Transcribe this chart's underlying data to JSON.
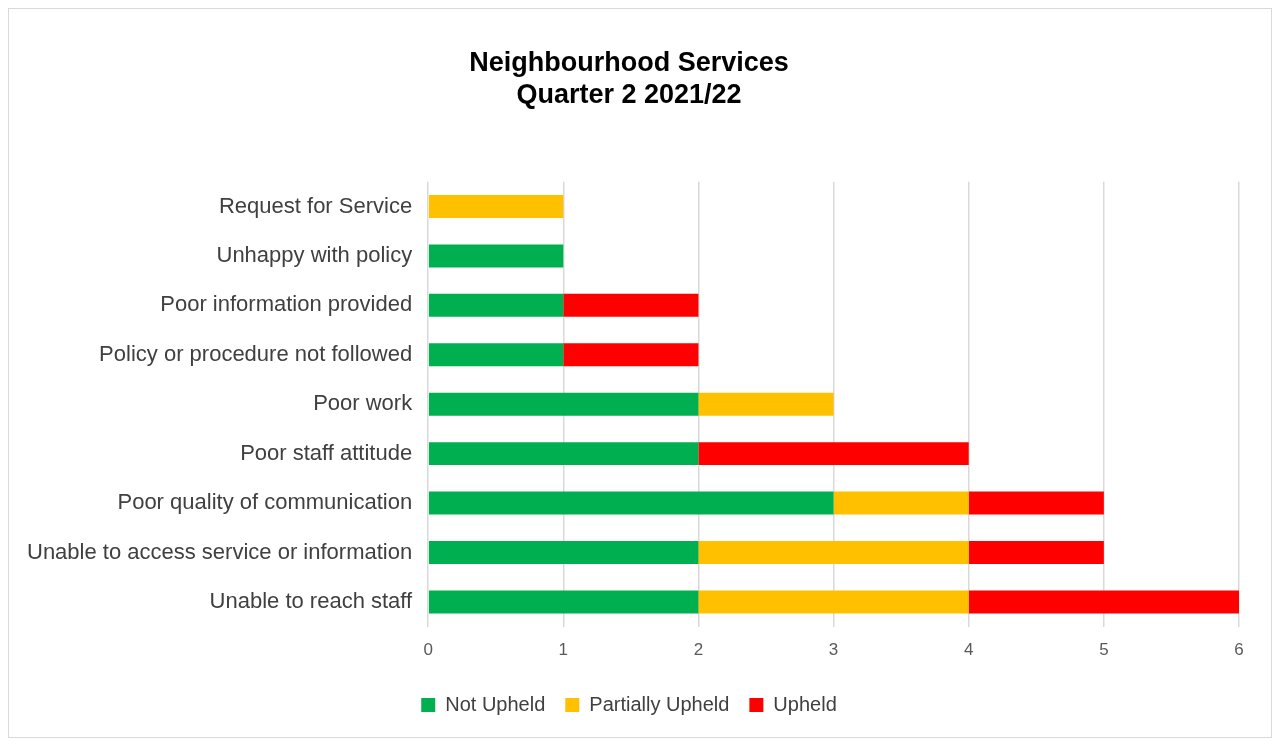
{
  "chart_data": {
    "type": "bar",
    "orientation": "horizontal",
    "stacked": true,
    "title": "Neighbourhood Services\nQuarter 2 2021/22",
    "categories": [
      "Request for Service",
      "Unhappy with policy",
      "Poor information provided",
      "Policy or procedure not followed",
      "Poor work",
      "Poor staff attitude",
      "Poor quality of communication",
      "Unable to access service or information",
      "Unable to reach staff"
    ],
    "series": [
      {
        "name": "Not Upheld",
        "color": "#00b050",
        "values": [
          0,
          1,
          1,
          1,
          2,
          2,
          3,
          2,
          2
        ]
      },
      {
        "name": "Partially Upheld",
        "color": "#ffc000",
        "values": [
          1,
          0,
          0,
          0,
          1,
          0,
          1,
          2,
          2
        ]
      },
      {
        "name": "Upheld",
        "color": "#ff0000",
        "values": [
          0,
          0,
          1,
          1,
          0,
          2,
          1,
          1,
          2
        ]
      }
    ],
    "xlim": [
      0,
      6
    ],
    "xticks": [
      0,
      1,
      2,
      3,
      4,
      5,
      6
    ],
    "grid": "x",
    "legend": "bottom"
  }
}
